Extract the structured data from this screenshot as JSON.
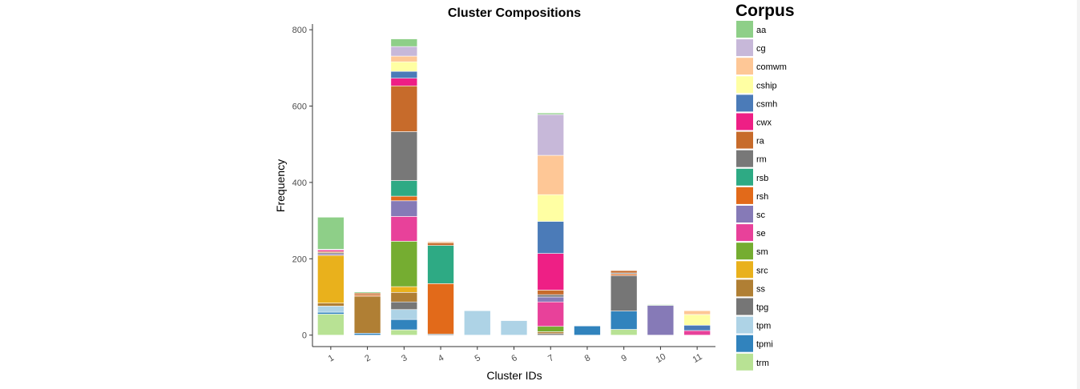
{
  "chart_data": {
    "type": "bar",
    "stacked": true,
    "title": "Cluster Compositions",
    "xlabel": "Cluster IDs",
    "ylabel": "Frequency",
    "ylim": [
      -30,
      815
    ],
    "yticks": [
      0,
      200,
      400,
      600,
      800
    ],
    "categories": [
      "1",
      "2",
      "3",
      "4",
      "5",
      "6",
      "7",
      "8",
      "9",
      "10",
      "11"
    ],
    "legend": {
      "title": "Corpus",
      "position": "right"
    },
    "grid": false,
    "series": [
      {
        "name": "trm",
        "color": "#b8e294",
        "values": [
          55,
          0,
          14,
          0,
          0,
          0,
          0,
          0,
          15,
          0,
          0
        ]
      },
      {
        "name": "tpmi",
        "color": "#3183bd",
        "values": [
          5,
          5,
          27,
          0,
          0,
          0,
          0,
          24,
          48,
          0,
          0
        ]
      },
      {
        "name": "tpm",
        "color": "#aed3e6",
        "values": [
          16,
          0,
          26,
          0,
          64,
          38,
          0,
          0,
          0,
          0,
          0
        ]
      },
      {
        "name": "tpg",
        "color": "#767676",
        "values": [
          0,
          0,
          20,
          3,
          0,
          0,
          4,
          0,
          93,
          0,
          0
        ]
      },
      {
        "name": "ss",
        "color": "#b07f34",
        "values": [
          8,
          97,
          25,
          0,
          0,
          0,
          5,
          0,
          0,
          0,
          0
        ]
      },
      {
        "name": "src",
        "color": "#e9b11c",
        "values": [
          125,
          0,
          15,
          0,
          0,
          0,
          0,
          0,
          0,
          0,
          0
        ]
      },
      {
        "name": "sm",
        "color": "#75ad31",
        "values": [
          0,
          0,
          119,
          0,
          0,
          0,
          14,
          0,
          0,
          0,
          0
        ]
      },
      {
        "name": "se",
        "color": "#e8419a",
        "values": [
          0,
          0,
          65,
          0,
          0,
          0,
          64,
          0,
          0,
          0,
          12
        ]
      },
      {
        "name": "sc",
        "color": "#867ab7",
        "values": [
          4,
          0,
          41,
          0,
          0,
          0,
          13,
          0,
          0,
          78,
          0
        ]
      },
      {
        "name": "rsh",
        "color": "#e26a1a",
        "values": [
          0,
          3,
          12,
          132,
          0,
          0,
          0,
          0,
          4,
          0,
          0
        ]
      },
      {
        "name": "rsb",
        "color": "#2eaa84",
        "values": [
          0,
          0,
          41,
          100,
          0,
          0,
          0,
          0,
          0,
          0,
          0
        ]
      },
      {
        "name": "rm",
        "color": "#787878",
        "values": [
          3,
          0,
          128,
          0,
          0,
          0,
          6,
          0,
          3,
          0,
          0
        ]
      },
      {
        "name": "ra",
        "color": "#c76b2b",
        "values": [
          3,
          5,
          120,
          7,
          0,
          0,
          12,
          0,
          6,
          0,
          0
        ]
      },
      {
        "name": "cwx",
        "color": "#ee1f85",
        "values": [
          4,
          0,
          20,
          0,
          0,
          0,
          96,
          0,
          0,
          0,
          0
        ]
      },
      {
        "name": "csmh",
        "color": "#4b7bb8",
        "values": [
          0,
          0,
          18,
          0,
          0,
          0,
          84,
          0,
          0,
          0,
          14
        ]
      },
      {
        "name": "cship",
        "color": "#ffffa3",
        "values": [
          0,
          0,
          25,
          0,
          0,
          0,
          70,
          0,
          0,
          0,
          28
        ]
      },
      {
        "name": "comwm",
        "color": "#fec796",
        "values": [
          0,
          0,
          15,
          3,
          0,
          0,
          103,
          0,
          0,
          0,
          10
        ]
      },
      {
        "name": "cg",
        "color": "#c7b8d9",
        "values": [
          2,
          0,
          25,
          0,
          0,
          0,
          107,
          0,
          0,
          0,
          0
        ]
      },
      {
        "name": "aa",
        "color": "#8ecf88",
        "values": [
          84,
          3,
          20,
          0,
          0,
          0,
          4,
          0,
          0,
          2,
          0
        ]
      }
    ]
  }
}
